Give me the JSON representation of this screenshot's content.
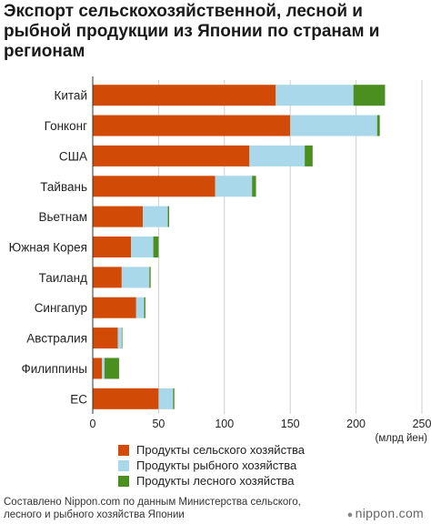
{
  "title": "Экспорт сельскохозяйственной, лесной и рыбной продукции из Японии по странам и регионам",
  "chart_data": {
    "type": "bar",
    "orientation": "horizontal",
    "stacked": true,
    "categories": [
      "Китай",
      "Гонконг",
      "США",
      "Тайвань",
      "Вьетнам",
      "Южная Корея",
      "Таиланд",
      "Сингапур",
      "Австралия",
      "Филиппины",
      "ЕС"
    ],
    "series": [
      {
        "name": "Продукты сельского хозяйства",
        "color": "#d14b06",
        "values": [
          139,
          150,
          119,
          93,
          38,
          29,
          22,
          33,
          19,
          7,
          50
        ]
      },
      {
        "name": "Продукты рыбного хозяйства",
        "color": "#a9d8ea",
        "values": [
          59,
          66,
          42,
          28,
          19,
          17,
          21,
          6,
          3,
          2,
          11
        ]
      },
      {
        "name": "Продукты лесного хозяйства",
        "color": "#4a8f1f",
        "values": [
          24,
          2,
          6,
          3,
          1,
          4,
          1,
          1,
          0.5,
          11,
          1
        ]
      }
    ],
    "xlim": [
      0,
      250
    ],
    "xticks": [
      0,
      50,
      100,
      150,
      200,
      250
    ],
    "xunit": "(млрд йен)",
    "grid": true,
    "legend_position": "bottom"
  },
  "legend": {
    "items": [
      {
        "label": "Продукты сельского хозяйства",
        "color": "#d14b06"
      },
      {
        "label": "Продукты рыбного хозяйства",
        "color": "#a9d8ea"
      },
      {
        "label": "Продукты лесного хозяйства",
        "color": "#4a8f1f"
      }
    ]
  },
  "source": "Составлено Nippon.com по данным Министерства сельского, лесного и рыбного хозяйства Японии",
  "brand": {
    "dot": "●",
    "text": "nippon.com"
  }
}
